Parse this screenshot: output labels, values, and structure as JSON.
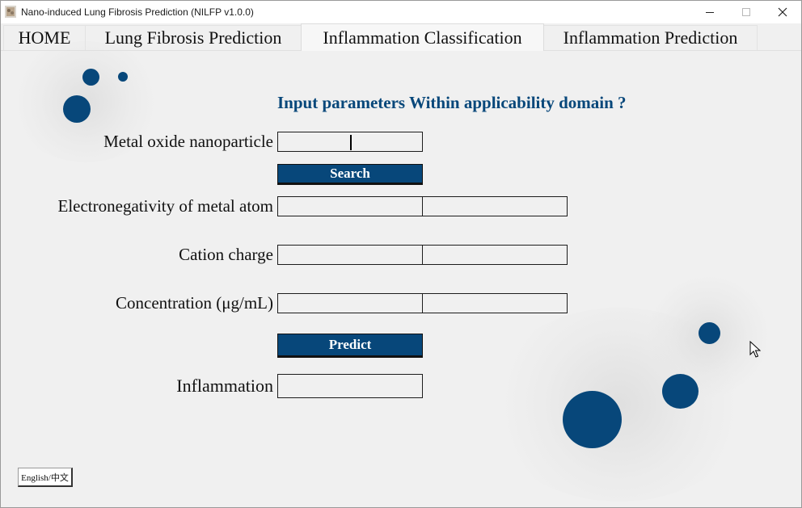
{
  "window": {
    "title": "Nano-induced Lung Fibrosis Prediction (NILFP v1.0.0)",
    "controls": {
      "minimize": "minimize-icon",
      "maximize": "maximize-icon",
      "close": "close-icon"
    }
  },
  "tabs": [
    {
      "label": "HOME",
      "active": false
    },
    {
      "label": "Lung Fibrosis Prediction",
      "active": false
    },
    {
      "label": "Inflammation Classification",
      "active": true
    },
    {
      "label": "Inflammation Prediction",
      "active": false
    }
  ],
  "main": {
    "heading": "Input parameters Within applicability domain ?",
    "nanoparticle": {
      "label": "Metal oxide nanoparticle",
      "value": ""
    },
    "search_button": "Search",
    "electronegativity": {
      "label": "Electronegativity of metal atom",
      "value": "",
      "domain_value": ""
    },
    "cation_charge": {
      "label": "Cation charge",
      "value": "",
      "domain_value": ""
    },
    "concentration": {
      "label": "Concentration (μg/mL)",
      "value": "",
      "domain_value": ""
    },
    "predict_button": "Predict",
    "inflammation": {
      "label": "Inflammation",
      "value": ""
    }
  },
  "language_button": "English/中文",
  "colors": {
    "accent": "#07477a",
    "background": "#f0f0f0",
    "field_border": "#1c1c1c"
  }
}
